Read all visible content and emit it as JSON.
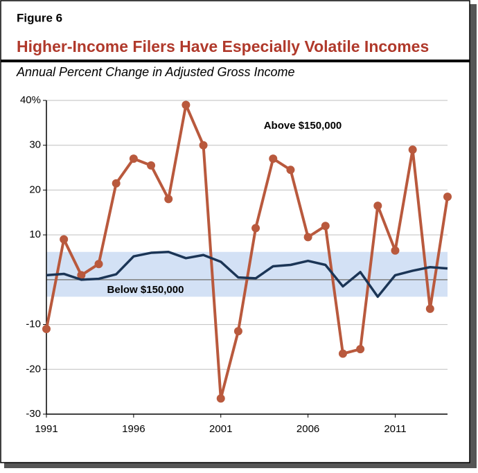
{
  "figure_label": "Figure 6",
  "chart_data": {
    "type": "line",
    "title": "Higher-Income Filers Have Especially Volatile Incomes",
    "subtitle": "Annual Percent Change in Adjusted Gross Income",
    "x": [
      1991,
      1992,
      1993,
      1994,
      1995,
      1996,
      1997,
      1998,
      1999,
      2000,
      2001,
      2002,
      2003,
      2004,
      2005,
      2006,
      2007,
      2008,
      2009,
      2010,
      2011,
      2012,
      2013,
      2014
    ],
    "series": [
      {
        "name": "Above $150,000",
        "color": "#b9593d",
        "values": [
          -11,
          9,
          1,
          3.5,
          21.5,
          27,
          25.5,
          18,
          39,
          30,
          -26.5,
          -11.5,
          11.5,
          27,
          24.5,
          9.5,
          12,
          -16.5,
          -15.5,
          16.5,
          6.5,
          29,
          -6.5,
          18.5
        ]
      },
      {
        "name": "Below $150,000",
        "color": "#1b3556",
        "values": [
          1,
          1.3,
          0,
          0.2,
          1.2,
          5.2,
          6,
          6.2,
          4.8,
          5.5,
          4,
          0.5,
          0.3,
          3,
          3.3,
          4.2,
          3.3,
          -1.5,
          1.7,
          -3.8,
          1,
          2,
          2.8,
          2.5
        ]
      }
    ],
    "band": [
      -3.8,
      6.2
    ],
    "band_color": "#d3e1f5",
    "xlim": [
      1991,
      2014
    ],
    "xticks": [
      1991,
      1996,
      2001,
      2006,
      2011
    ],
    "ylim": [
      -30,
      40
    ],
    "yticks": [
      {
        "value": 40,
        "label": "40%"
      },
      30,
      20,
      10,
      -10,
      -20,
      -30
    ],
    "grid": true,
    "zero_line": true
  }
}
